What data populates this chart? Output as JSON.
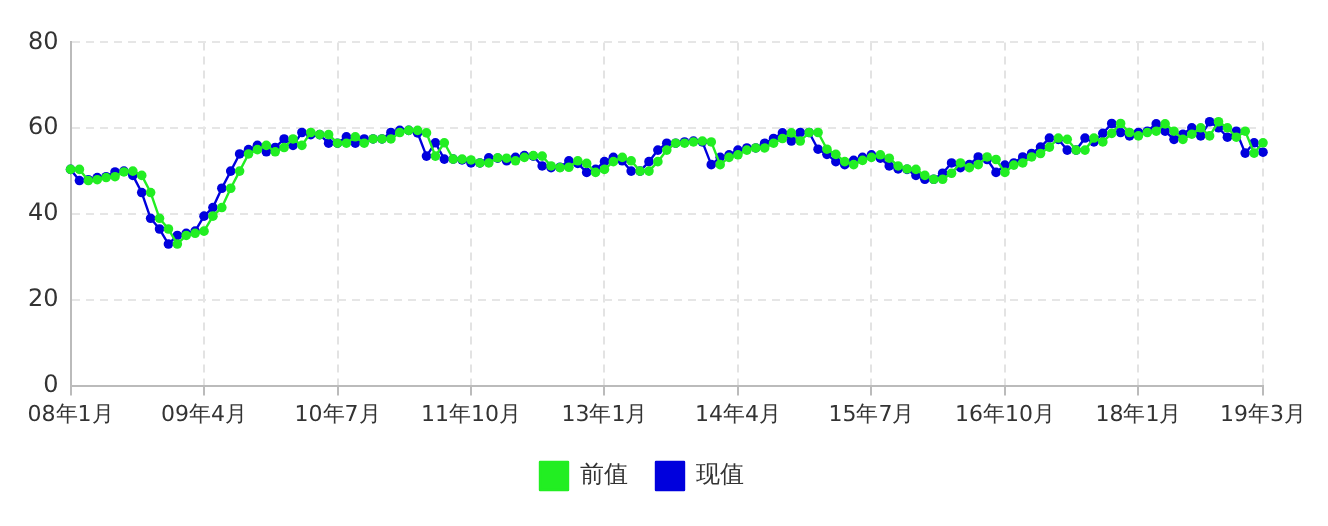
{
  "chart_data": {
    "type": "line",
    "categories": [
      "08年1月",
      null,
      null,
      null,
      null,
      null,
      null,
      null,
      null,
      null,
      null,
      null,
      null,
      null,
      null,
      "09年4月",
      null,
      null,
      null,
      null,
      null,
      null,
      null,
      null,
      null,
      null,
      null,
      null,
      null,
      null,
      "10年7月",
      null,
      null,
      null,
      null,
      null,
      null,
      null,
      null,
      null,
      null,
      null,
      null,
      null,
      null,
      "11年10月",
      null,
      null,
      null,
      null,
      null,
      null,
      null,
      null,
      null,
      null,
      null,
      null,
      null,
      null,
      "13年1月",
      null,
      null,
      null,
      null,
      null,
      null,
      null,
      null,
      null,
      null,
      null,
      null,
      null,
      null,
      "14年4月",
      null,
      null,
      null,
      null,
      null,
      null,
      null,
      null,
      null,
      null,
      null,
      null,
      null,
      null,
      "15年7月",
      null,
      null,
      null,
      null,
      null,
      null,
      null,
      null,
      null,
      null,
      null,
      null,
      null,
      null,
      "16年10月",
      null,
      null,
      null,
      null,
      null,
      null,
      null,
      null,
      null,
      null,
      null,
      null,
      null,
      null,
      "18年1月",
      null,
      null,
      null,
      null,
      null,
      null,
      null,
      null,
      null,
      null,
      null,
      null,
      null,
      "19年3月"
    ],
    "series": [
      {
        "name": "前值",
        "color": "#22ee22",
        "values": [
          50.4,
          50.4,
          47.8,
          48,
          48.5,
          48.7,
          49.8,
          50,
          49,
          45,
          39,
          36.5,
          33,
          35,
          35.5,
          36,
          39.5,
          41.5,
          46,
          50,
          54,
          55,
          56,
          54.5,
          55.5,
          57.5,
          56,
          59,
          58.5,
          58.5,
          56.5,
          56.5,
          58,
          56.5,
          57.5,
          57.5,
          57.5,
          59,
          59.5,
          59.5,
          58.9,
          53.5,
          56.6,
          52.8,
          52.8,
          52.6,
          51.9,
          51.9,
          53.1,
          53,
          52.4,
          53.2,
          53.6,
          53.5,
          51.2,
          50.8,
          50.9,
          52.4,
          51.8,
          49.7,
          50.4,
          52.2,
          53.2,
          52.4,
          50,
          50,
          52.2,
          54.9,
          56.5,
          56.5,
          56.8,
          57,
          56.8,
          51.5,
          53.2,
          53.8,
          54.9,
          55.4,
          55.4,
          56.5,
          57.6,
          58.9,
          57,
          59,
          59,
          55.1,
          53.9,
          52.2,
          51.5,
          52.5,
          53.2,
          53.8,
          53,
          51.2,
          50.5,
          50.4,
          49,
          48.1,
          48.1,
          49.5,
          51.9,
          50.8,
          51.5,
          53.3,
          52.7,
          49.7,
          51.4,
          51.9,
          53.3,
          54.1,
          55.6,
          57.7,
          57.4,
          54.9,
          54.9,
          57.7,
          56.8,
          58.8,
          61.1,
          59,
          58.2,
          59,
          59.3,
          61,
          59.3,
          57.4,
          58.6,
          60.1,
          58.2,
          61.5,
          60.1,
          57.9,
          59.3,
          54.2,
          56.6
        ]
      },
      {
        "name": "现值",
        "color": "#0000dd",
        "values": [
          50.4,
          47.8,
          48,
          48.5,
          48.7,
          49.8,
          50,
          49,
          45,
          39,
          36.5,
          33,
          35,
          35.5,
          36,
          39.5,
          41.5,
          46,
          50,
          54,
          55,
          56,
          54.5,
          55.5,
          57.5,
          56,
          59,
          58.5,
          58.5,
          56.5,
          56.5,
          58,
          56.5,
          57.5,
          57.5,
          57.5,
          59,
          59.5,
          59.5,
          58.9,
          53.5,
          56.6,
          52.8,
          52.8,
          52.6,
          51.9,
          51.9,
          53.1,
          53,
          52.4,
          53.2,
          53.6,
          53.5,
          51.2,
          50.8,
          50.9,
          52.4,
          51.8,
          49.7,
          50.4,
          52.2,
          53.2,
          52.4,
          50,
          50,
          52.2,
          54.9,
          56.5,
          56.5,
          56.8,
          57,
          56.8,
          51.5,
          53.2,
          53.8,
          54.9,
          55.4,
          55.4,
          56.5,
          57.6,
          58.9,
          57,
          59,
          59,
          55.1,
          53.9,
          52.2,
          51.5,
          52.5,
          53.2,
          53.8,
          53,
          51.2,
          50.5,
          50.4,
          49,
          48.1,
          48.1,
          49.5,
          51.9,
          50.8,
          51.5,
          53.3,
          52.7,
          49.7,
          51.4,
          51.9,
          53.3,
          54.1,
          55.6,
          57.7,
          57.4,
          54.9,
          54.9,
          57.7,
          56.8,
          58.8,
          61.1,
          59,
          58.2,
          59,
          59.3,
          61,
          59.3,
          57.4,
          58.6,
          60.1,
          58.2,
          61.5,
          60.1,
          57.9,
          59.3,
          54.2,
          56.6,
          54.4
        ]
      }
    ],
    "ylim": [
      0,
      80
    ],
    "yticks": [
      0,
      20,
      40,
      60,
      80
    ],
    "grid": true,
    "legend": "bottom",
    "marker": "circle",
    "line_style": "solid"
  }
}
